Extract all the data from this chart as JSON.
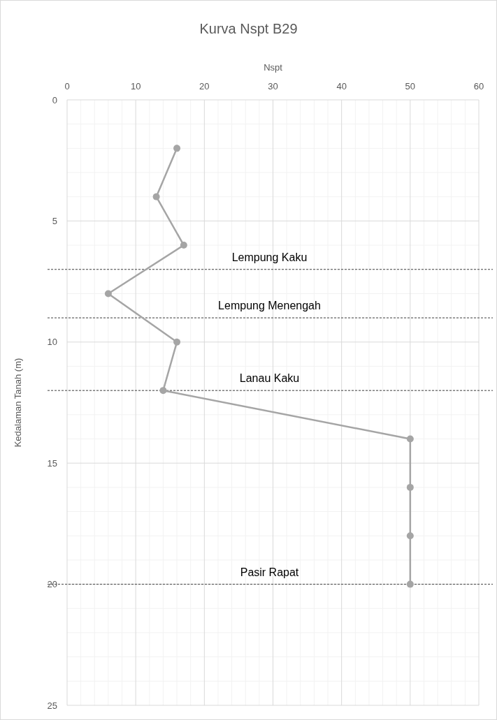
{
  "chart_data": {
    "type": "line",
    "title": "Kurva Nspt B29",
    "xlabel": "Nspt",
    "ylabel": "Kedalaman Tanah (m)",
    "series": [
      {
        "color": "#a5a5a5",
        "x": [
          16,
          13,
          17,
          6,
          16,
          14,
          50,
          50,
          50,
          50
        ],
        "values": [
          2,
          4,
          6,
          8,
          10,
          12,
          14,
          16,
          18,
          20
        ]
      }
    ],
    "xlim": [
      0,
      60
    ],
    "xticks": [
      0,
      10,
      20,
      30,
      40,
      50,
      60
    ],
    "ylim": [
      25,
      0
    ],
    "yticks": [
      0,
      5,
      10,
      15,
      20,
      25
    ],
    "grid": true,
    "marker": "circle",
    "line_style": "solid",
    "ref_lines": [
      {
        "axis": "y",
        "value": 7,
        "label": "Lempung Kaku",
        "line_style": "dashed",
        "color": "#404040"
      },
      {
        "axis": "y",
        "value": 9,
        "label": "Lempung Menengah",
        "line_style": "dashed",
        "color": "#404040"
      },
      {
        "axis": "y",
        "value": 12,
        "label": "Lanau Kaku",
        "line_style": "dashed",
        "color": "#404040"
      },
      {
        "axis": "y",
        "value": 20,
        "label": "Pasir Rapat",
        "line_style": "dashed",
        "color": "#404040"
      }
    ]
  }
}
